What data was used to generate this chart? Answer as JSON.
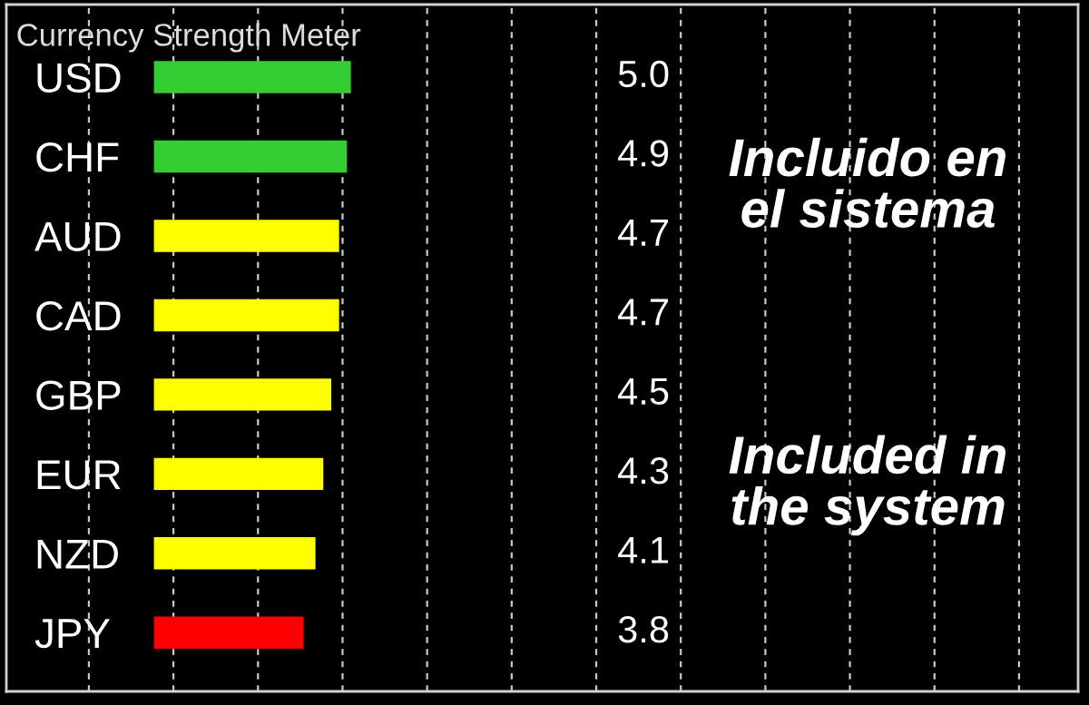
{
  "chart_data": {
    "type": "bar",
    "orientation": "horizontal",
    "title": "Currency Strength Meter",
    "categories": [
      "USD",
      "CHF",
      "AUD",
      "CAD",
      "GBP",
      "EUR",
      "NZD",
      "JPY"
    ],
    "values": [
      5.0,
      4.9,
      4.7,
      4.7,
      4.5,
      4.3,
      4.1,
      3.8
    ],
    "value_labels": [
      "5.0",
      "4.9",
      "4.7",
      "4.7",
      "4.5",
      "4.3",
      "4.1",
      "3.8"
    ],
    "colors": [
      "#33cc33",
      "#33cc33",
      "#ffff00",
      "#ffff00",
      "#ffff00",
      "#ffff00",
      "#ffff00",
      "#ff0000"
    ],
    "grid": "x",
    "tick_labels": "y",
    "annotations": [
      "Incluido en\nel sistema",
      "Included in\nthe system"
    ]
  }
}
